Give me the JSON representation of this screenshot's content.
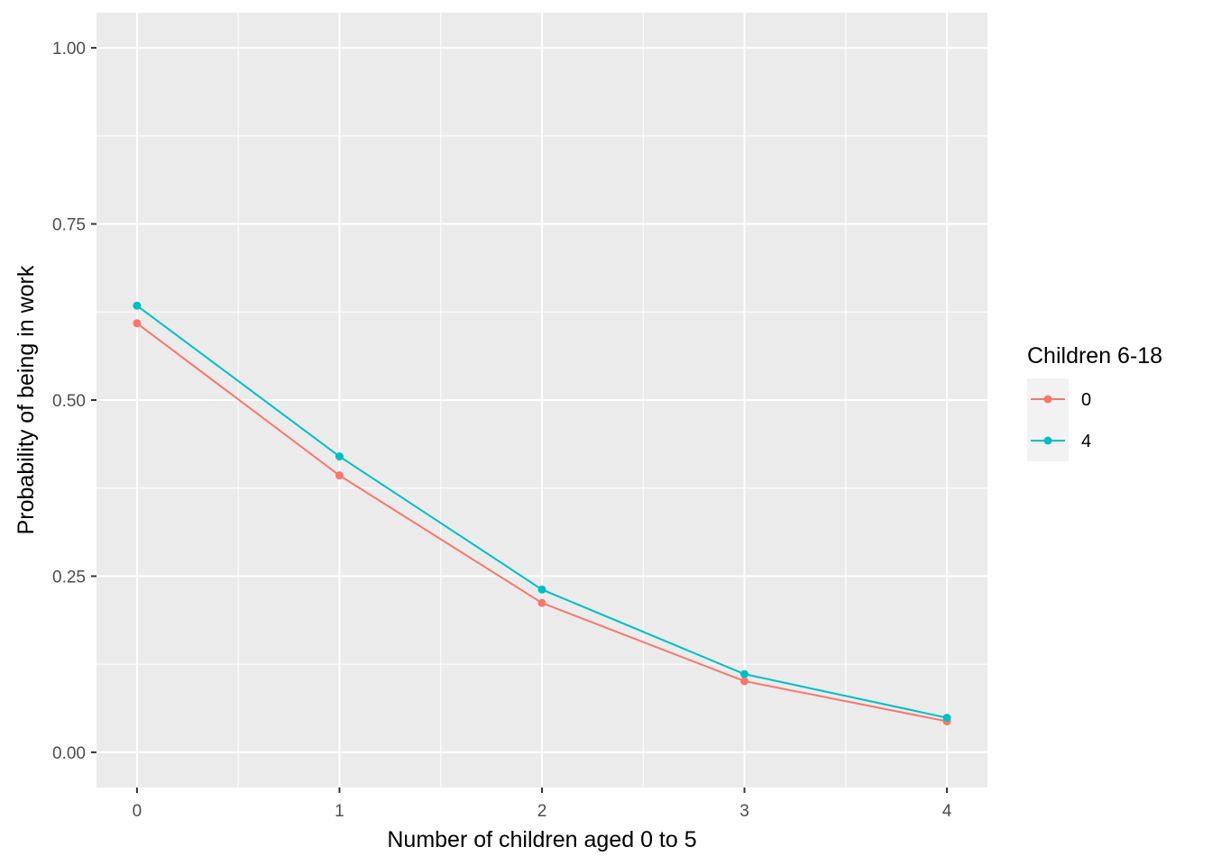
{
  "chart_data": {
    "type": "line",
    "xlabel": "Number of children aged 0 to 5",
    "ylabel": "Probability of being in work",
    "x": [
      0,
      1,
      2,
      3,
      4
    ],
    "x_tick_labels": [
      "0",
      "1",
      "2",
      "3",
      "4"
    ],
    "y_tick_labels": [
      "0.00",
      "0.25",
      "0.50",
      "0.75",
      "1.00"
    ],
    "y_ticks": [
      0,
      0.25,
      0.5,
      0.75,
      1
    ],
    "xlim": [
      -0.2,
      4.2
    ],
    "ylim": [
      -0.05,
      1.05
    ],
    "grid": true,
    "legend": {
      "title": "Children 6-18",
      "placement": "right"
    },
    "series": [
      {
        "name": "0",
        "color": "#F8766D",
        "values": [
          0.609,
          0.393,
          0.212,
          0.101,
          0.044
        ]
      },
      {
        "name": "4",
        "color": "#00BFC4",
        "values": [
          0.634,
          0.42,
          0.231,
          0.111,
          0.049
        ]
      }
    ],
    "panel_background": "#EBEBEB",
    "grid_color": "#FFFFFF"
  }
}
